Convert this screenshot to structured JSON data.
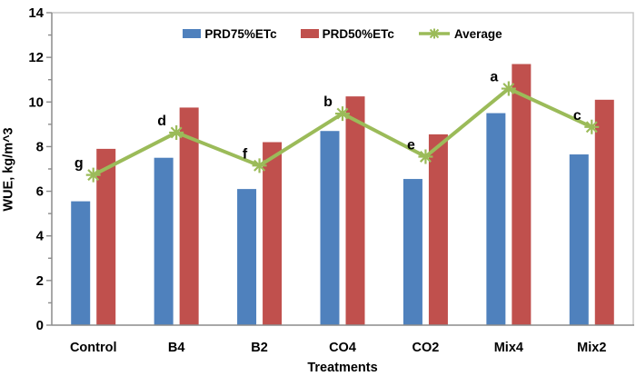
{
  "chart_data": {
    "type": "bar",
    "title": "",
    "categories": [
      "Control",
      "B4",
      "B2",
      "CO4",
      "CO2",
      "Mix4",
      "Mix2"
    ],
    "series": [
      {
        "name": "PRD75%ETc",
        "type": "bar",
        "color": "#4f81bd",
        "values": [
          5.55,
          7.5,
          6.1,
          8.7,
          6.55,
          9.5,
          7.65
        ]
      },
      {
        "name": "PRD50%ETc",
        "type": "bar",
        "color": "#c0504d",
        "values": [
          7.9,
          9.75,
          8.2,
          10.25,
          8.55,
          11.7,
          10.1
        ]
      },
      {
        "name": "Average",
        "type": "line",
        "color": "#9bbb59",
        "marker": "asterisk",
        "values": [
          6.73,
          8.63,
          7.15,
          9.48,
          7.55,
          10.6,
          8.88
        ]
      }
    ],
    "point_labels": [
      "g",
      "d",
      "f",
      "b",
      "e",
      "a",
      "c"
    ],
    "xlabel": "Treatments",
    "ylabel": "WUE, kg/m^3",
    "ylim": [
      0,
      14
    ],
    "ytick_major_step": 2,
    "ytick_minor_step": 1,
    "grid": false,
    "legend_position": "top-center-inside",
    "axis_color": "#8c8c8c",
    "plot_border_color": "#c8c8c8",
    "text_color": "#000000"
  }
}
